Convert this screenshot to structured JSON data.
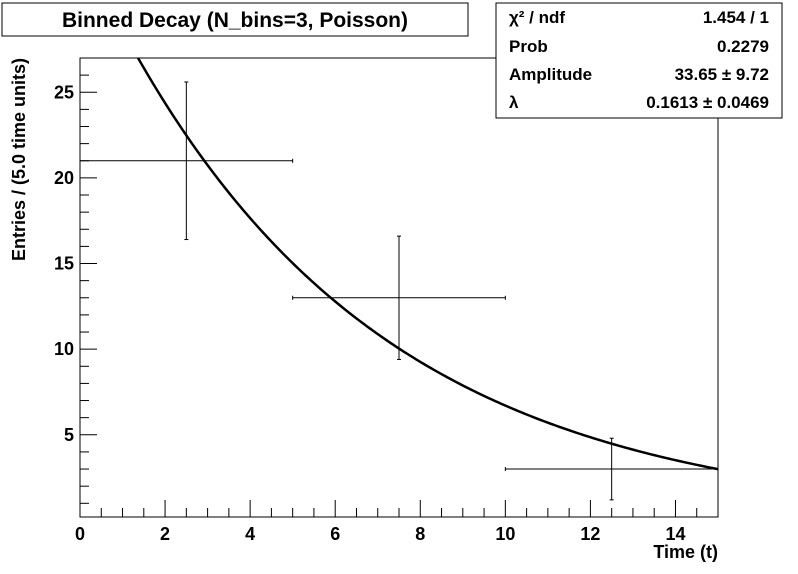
{
  "chart_data": {
    "type": "scatter",
    "title": "Binned Decay (N_bins=3, Poisson)",
    "xlabel": "Time (t)",
    "ylabel": "Entries / (5.0 time units)",
    "xlim": [
      0,
      15
    ],
    "ylim": [
      0.2,
      27
    ],
    "xticks": [
      0,
      2,
      4,
      6,
      8,
      10,
      12,
      14
    ],
    "yticks": [
      5,
      10,
      15,
      20,
      25
    ],
    "grid": false,
    "points": [
      {
        "x": 2.5,
        "y": 21,
        "xlo": 0,
        "xhi": 5,
        "ylo": 16.4,
        "yhi": 25.6
      },
      {
        "x": 7.5,
        "y": 13,
        "xlo": 5,
        "xhi": 10,
        "ylo": 9.4,
        "yhi": 16.6
      },
      {
        "x": 12.5,
        "y": 3,
        "xlo": 10,
        "xhi": 15,
        "ylo": 1.2,
        "yhi": 4.8
      }
    ],
    "fit": {
      "amplitude": 33.65,
      "lambda": 0.1613
    },
    "stats": [
      {
        "label": "χ² / ndf",
        "value": "1.454 / 1"
      },
      {
        "label": "Prob",
        "value": "0.2279"
      },
      {
        "label": "Amplitude",
        "value": "33.65 ± 9.72"
      },
      {
        "label": "λ",
        "value": "0.1613 ± 0.0469"
      }
    ]
  }
}
